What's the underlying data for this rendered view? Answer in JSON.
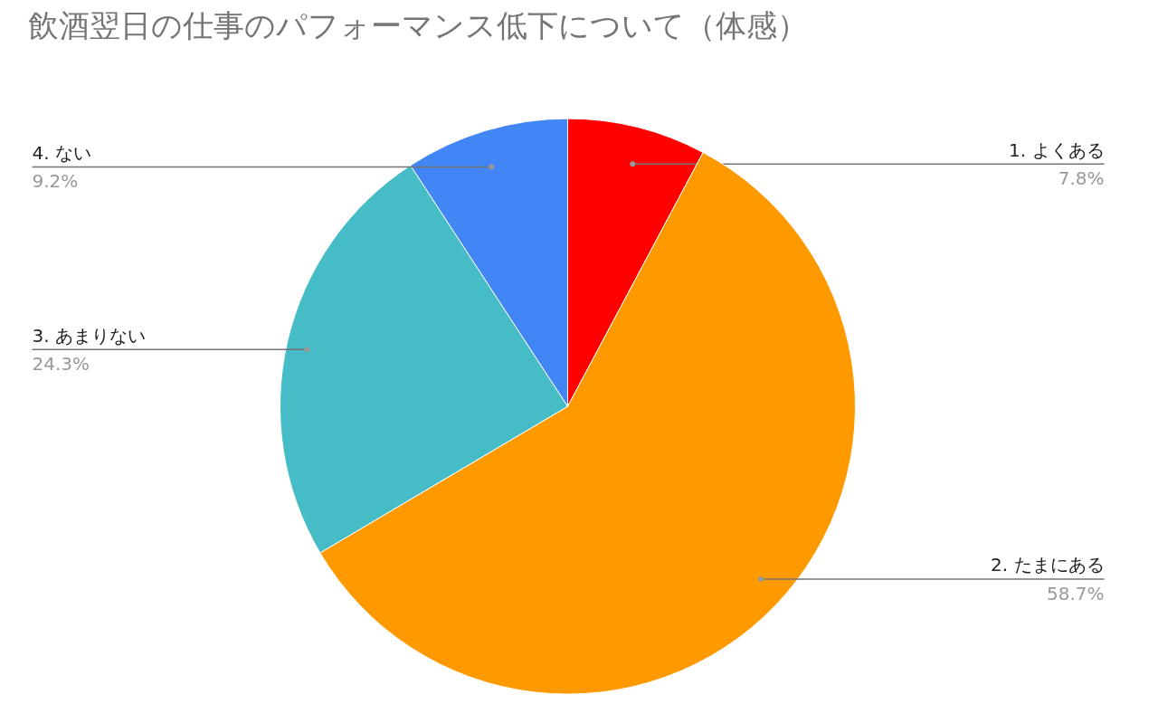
{
  "chart_data": {
    "type": "pie",
    "title": "飲酒翌日の仕事のパフォーマンス低下について（体感）",
    "categories": [
      "1. よくある",
      "2. たまにある",
      "3. あまりない",
      "4. ない"
    ],
    "values": [
      7.8,
      58.7,
      24.3,
      9.2
    ],
    "colors": [
      "#ff0000",
      "#ff9900",
      "#46bdc6",
      "#4285f4"
    ],
    "value_labels": [
      "7.8%",
      "58.7%",
      "24.3%",
      "9.2%"
    ]
  }
}
